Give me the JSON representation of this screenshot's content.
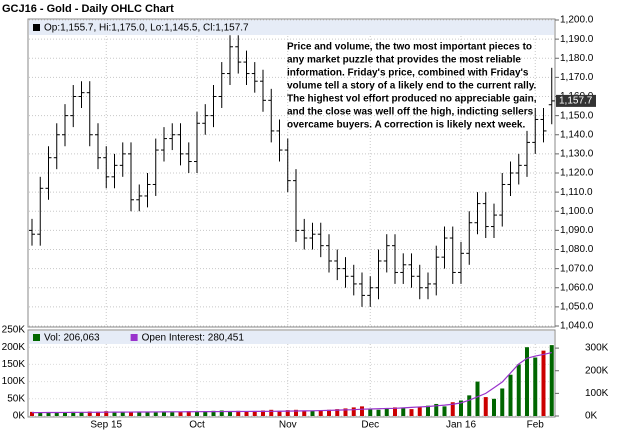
{
  "chart_data": [
    {
      "type": "ohlc",
      "title": "GCJ16 - Gold - Daily OHLC Chart",
      "info": "Op:1,155.7, Hi:1,175.0, Lo:1,145.5, Cl:1,157.7",
      "last_label": "1,157.7",
      "annotation": [
        "Price and volume, the two most important pieces to",
        "any market puzzle that provides the most reliable",
        "information.  Friday's price, combined with Friday's",
        "volume tell a story of a likely end to the current rally.",
        "The highest vol effort produced no appreciable gain,",
        "and the close was well off the high, indicting sellers",
        "overcame buyers.  A correction is likely next week."
      ],
      "categories": [
        null,
        null,
        null,
        null,
        null,
        null,
        null,
        null,
        null,
        "Sep 15",
        null,
        null,
        null,
        null,
        null,
        null,
        null,
        null,
        null,
        null,
        "Oct",
        null,
        null,
        null,
        null,
        null,
        null,
        null,
        null,
        null,
        null,
        "Nov",
        null,
        null,
        null,
        null,
        null,
        null,
        null,
        null,
        null,
        "Dec",
        null,
        null,
        null,
        null,
        null,
        null,
        null,
        null,
        null,
        null,
        "Jan 16",
        null,
        null,
        null,
        null,
        null,
        null,
        null,
        null,
        "Feb",
        null,
        null
      ],
      "open": [
        1090,
        1088,
        1112,
        1128,
        1140,
        1150,
        1160,
        1162,
        1140,
        1128,
        1118,
        1124,
        1130,
        1106,
        1108,
        1114,
        1132,
        1138,
        1140,
        1130,
        1126,
        1146,
        1150,
        1160,
        1172,
        1186,
        1178,
        1172,
        1168,
        1158,
        1142,
        1132,
        1116,
        1090,
        1086,
        1088,
        1082,
        1074,
        1070,
        1066,
        1062,
        1056,
        1060,
        1074,
        1082,
        1068,
        1072,
        1066,
        1060,
        1062,
        1076,
        1086,
        1068,
        1078,
        1094,
        1104,
        1092,
        1098,
        1114,
        1120,
        1124,
        1136,
        1148,
        1155.7
      ],
      "high": [
        1096,
        1118,
        1134,
        1146,
        1156,
        1166,
        1168,
        1168,
        1146,
        1134,
        1130,
        1136,
        1136,
        1114,
        1120,
        1138,
        1144,
        1146,
        1146,
        1136,
        1152,
        1156,
        1166,
        1178,
        1192,
        1192,
        1184,
        1178,
        1174,
        1164,
        1148,
        1138,
        1122,
        1096,
        1094,
        1094,
        1088,
        1080,
        1076,
        1072,
        1068,
        1066,
        1080,
        1088,
        1088,
        1078,
        1078,
        1072,
        1068,
        1082,
        1092,
        1092,
        1084,
        1100,
        1110,
        1110,
        1104,
        1120,
        1126,
        1130,
        1142,
        1154,
        1154,
        1175
      ],
      "low": [
        1082,
        1082,
        1106,
        1122,
        1134,
        1144,
        1154,
        1134,
        1122,
        1112,
        1112,
        1118,
        1100,
        1100,
        1102,
        1108,
        1126,
        1132,
        1124,
        1120,
        1120,
        1140,
        1144,
        1154,
        1166,
        1172,
        1166,
        1162,
        1152,
        1136,
        1126,
        1110,
        1084,
        1080,
        1080,
        1076,
        1068,
        1064,
        1060,
        1056,
        1050,
        1050,
        1054,
        1068,
        1062,
        1062,
        1060,
        1054,
        1054,
        1056,
        1070,
        1062,
        1062,
        1072,
        1088,
        1086,
        1086,
        1092,
        1108,
        1114,
        1118,
        1130,
        1136,
        1145.5
      ],
      "close": [
        1088,
        1112,
        1128,
        1140,
        1150,
        1160,
        1162,
        1140,
        1128,
        1118,
        1124,
        1130,
        1106,
        1108,
        1114,
        1132,
        1138,
        1140,
        1130,
        1126,
        1146,
        1150,
        1160,
        1172,
        1186,
        1178,
        1172,
        1168,
        1158,
        1142,
        1132,
        1116,
        1090,
        1086,
        1088,
        1082,
        1074,
        1070,
        1066,
        1062,
        1056,
        1060,
        1074,
        1082,
        1068,
        1072,
        1066,
        1060,
        1062,
        1076,
        1086,
        1068,
        1078,
        1094,
        1104,
        1092,
        1098,
        1114,
        1120,
        1124,
        1136,
        1148,
        1142,
        1157.7
      ],
      "color": "#000000",
      "ylim": [
        1040,
        1200
      ],
      "yticks": [
        {
          "value": 1040,
          "label": "1,040.0"
        },
        {
          "value": 1050,
          "label": "1,050.0"
        },
        {
          "value": 1060,
          "label": "1,060.0"
        },
        {
          "value": 1070,
          "label": "1,070.0"
        },
        {
          "value": 1080,
          "label": "1,080.0"
        },
        {
          "value": 1090,
          "label": "1,090.0"
        },
        {
          "value": 1100,
          "label": "1,100.0"
        },
        {
          "value": 1110,
          "label": "1,110.0"
        },
        {
          "value": 1120,
          "label": "1,120.0"
        },
        {
          "value": 1130,
          "label": "1,130.0"
        },
        {
          "value": 1140,
          "label": "1,140.0"
        },
        {
          "value": 1150,
          "label": "1,150.0"
        },
        {
          "value": 1160,
          "label": "1,160.0"
        },
        {
          "value": 1170,
          "label": "1,170.0"
        },
        {
          "value": 1180,
          "label": "1,180.0"
        },
        {
          "value": 1190,
          "label": "1,190.0"
        },
        {
          "value": 1200,
          "label": "1,200.0"
        }
      ],
      "grid": true
    },
    {
      "type": "bar",
      "series": [
        {
          "name": "Vol: 206,063",
          "color": "#006600",
          "down_color": "#cc0000",
          "values": [
            12000,
            10000,
            11000,
            9000,
            10000,
            12000,
            11000,
            13000,
            12000,
            14000,
            10000,
            11000,
            13000,
            12000,
            11000,
            10000,
            12000,
            11000,
            13000,
            14000,
            12000,
            13000,
            15000,
            16000,
            14000,
            15000,
            13000,
            14000,
            16000,
            18000,
            15000,
            17000,
            18000,
            16000,
            15000,
            17000,
            18000,
            20000,
            22000,
            25000,
            28000,
            20000,
            18000,
            22000,
            25000,
            24000,
            20000,
            26000,
            30000,
            35000,
            28000,
            40000,
            45000,
            60000,
            100000,
            55000,
            50000,
            80000,
            120000,
            150000,
            200000,
            170000,
            190000,
            206063
          ]
        },
        {
          "name": "Open Interest: 280,451",
          "type": "line",
          "axis": "y2",
          "color": "#9933cc",
          "values": [
            15000,
            15200,
            15400,
            15600,
            15800,
            16000,
            16200,
            16400,
            16600,
            16800,
            17000,
            17200,
            17400,
            17600,
            17800,
            18000,
            18200,
            18400,
            18600,
            18800,
            19000,
            19200,
            19400,
            19600,
            19800,
            20000,
            20200,
            20400,
            20600,
            20800,
            21000,
            21500,
            22000,
            22500,
            23000,
            24000,
            25000,
            26000,
            27000,
            28000,
            30000,
            31000,
            32000,
            33000,
            34000,
            36000,
            38000,
            40000,
            42000,
            45000,
            48000,
            52000,
            58000,
            70000,
            85000,
            100000,
            125000,
            150000,
            190000,
            230000,
            255000,
            265000,
            272000,
            280451
          ]
        }
      ],
      "ylim": [
        0,
        250000
      ],
      "yticks": [
        {
          "value": 0,
          "label": "0K"
        },
        {
          "value": 50000,
          "label": "50K"
        },
        {
          "value": 100000,
          "label": "100K"
        },
        {
          "value": 150000,
          "label": "150K"
        },
        {
          "value": 200000,
          "label": "200K"
        },
        {
          "value": 250000,
          "label": "250K"
        }
      ],
      "y2lim": [
        0,
        380000
      ],
      "y2ticks": [
        {
          "value": 0,
          "label": "0K"
        },
        {
          "value": 100000,
          "label": "100K"
        },
        {
          "value": 200000,
          "label": "200K"
        },
        {
          "value": 300000,
          "label": "300K"
        }
      ],
      "grid": true
    }
  ]
}
